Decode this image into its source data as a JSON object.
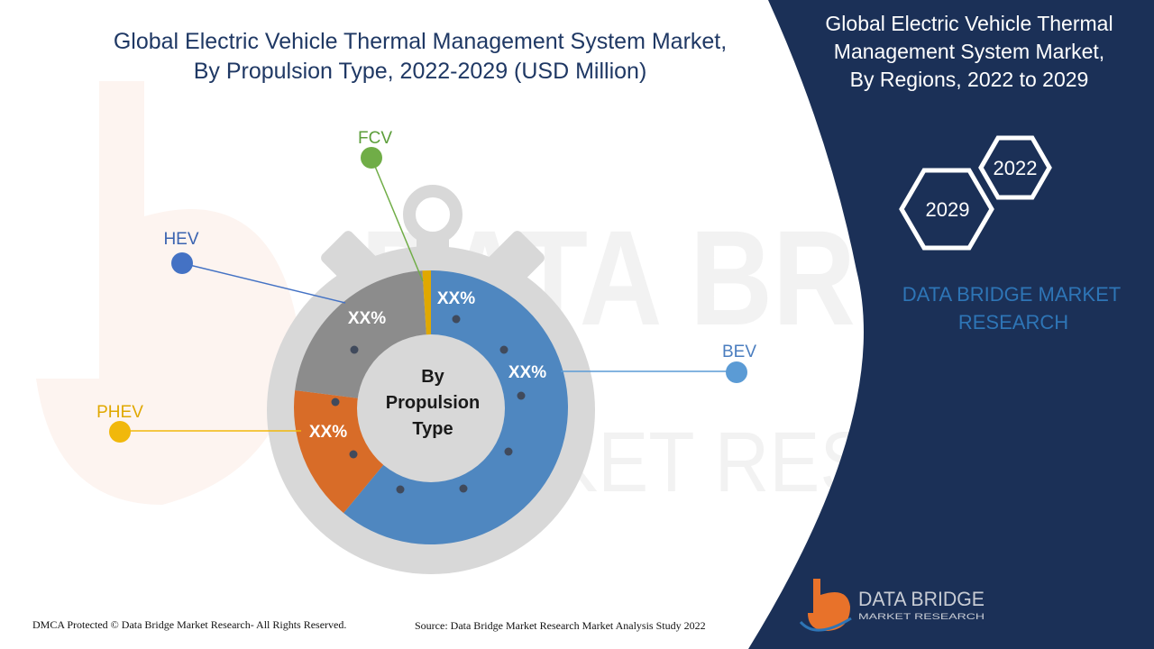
{
  "chart_data": {
    "type": "donut",
    "title": "Global Electric Vehicle Thermal Management System Market,",
    "subtitle": "By Propulsion Type, 2022-2029 (USD Million)",
    "center_label": [
      "By",
      "Propulsion",
      "Type"
    ],
    "categories": [
      "BEV",
      "PHEV",
      "HEV",
      "FCV"
    ],
    "values": [
      61,
      16,
      22,
      1
    ],
    "value_labels": [
      "XX%",
      "XX%",
      "XX%",
      ""
    ],
    "colors": [
      "#4f87c0",
      "#d86c28",
      "#8c8c8c",
      "#e0a800"
    ],
    "legend_colors": [
      "#5b9bd5",
      "#f1b80b",
      "#4472c4",
      "#70ad47"
    ]
  },
  "side_panel": {
    "title_lines": [
      "Global Electric Vehicle Thermal",
      "Management System Market,",
      "By Regions, 2022 to 2029"
    ],
    "year_start": "2022",
    "year_end": "2029",
    "brand_lines": [
      "DATA BRIDGE MARKET",
      "RESEARCH"
    ]
  },
  "watermark": {
    "line1": "DATA BRIDGE",
    "line2": "MARKET RESEARCH"
  },
  "logo": {
    "name": "DATA BRIDGE",
    "tagline": "MARKET RESEARCH"
  },
  "footer": {
    "dmca": "DMCA Protected © Data Bridge Market Research- All Rights Reserved.",
    "source": "Source: Data Bridge Market Research Market Analysis Study 2022"
  },
  "colors": {
    "navy": "#1b3057",
    "title": "#1f3864",
    "accent_blue": "#2e75b6"
  }
}
